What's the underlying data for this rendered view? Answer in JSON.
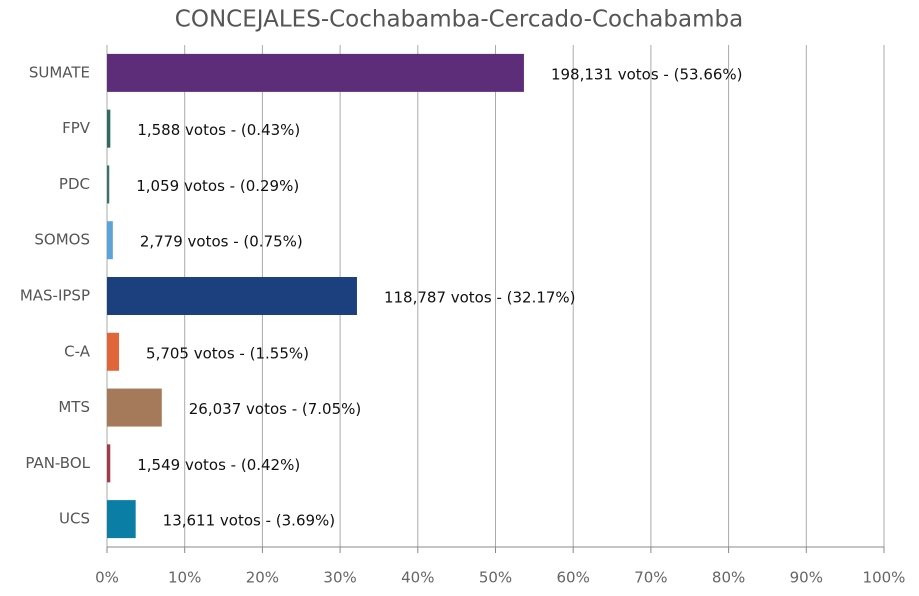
{
  "chart_data": {
    "type": "barh",
    "title": "CONCEJALES-Cochabamba-Cercado-Cochabamba",
    "categories": [
      "SUMATE",
      "FPV",
      "PDC",
      "SOMOS",
      "MAS-IPSP",
      "C-A",
      "MTS",
      "PAN-BOL",
      "UCS"
    ],
    "values": [
      53.66,
      0.43,
      0.29,
      0.75,
      32.17,
      1.55,
      7.05,
      0.42,
      3.69
    ],
    "value_labels": [
      "198,131 votos - (53.66%)",
      "1,588 votos - (0.43%)",
      "1,059 votos - (0.29%)",
      "2,779 votos - (0.75%)",
      "118,787 votos - (32.17%)",
      "5,705 votos - (1.55%)",
      "26,037 votos - (7.05%)",
      "1,549 votos - (0.42%)",
      "13,611 votos - (3.69%)"
    ],
    "colors": [
      "#5e2d79",
      "#2f6b5e",
      "#3d6f6f",
      "#5ba3d9",
      "#1c3f7e",
      "#e0663a",
      "#a57a5a",
      "#a23a4a",
      "#0b7ea6"
    ],
    "xlim": [
      0,
      100
    ],
    "xticks": [
      {
        "value": 0,
        "label": "0%"
      },
      {
        "value": 10,
        "label": "10%"
      },
      {
        "value": 20,
        "label": "20%"
      },
      {
        "value": 30,
        "label": "30%"
      },
      {
        "value": 40,
        "label": "40%"
      },
      {
        "value": 50,
        "label": "50%"
      },
      {
        "value": 60,
        "label": "60%"
      },
      {
        "value": 70,
        "label": "70%"
      },
      {
        "value": 80,
        "label": "80%"
      },
      {
        "value": 90,
        "label": "90%"
      },
      {
        "value": 100,
        "label": "100%"
      }
    ],
    "grid": true
  }
}
